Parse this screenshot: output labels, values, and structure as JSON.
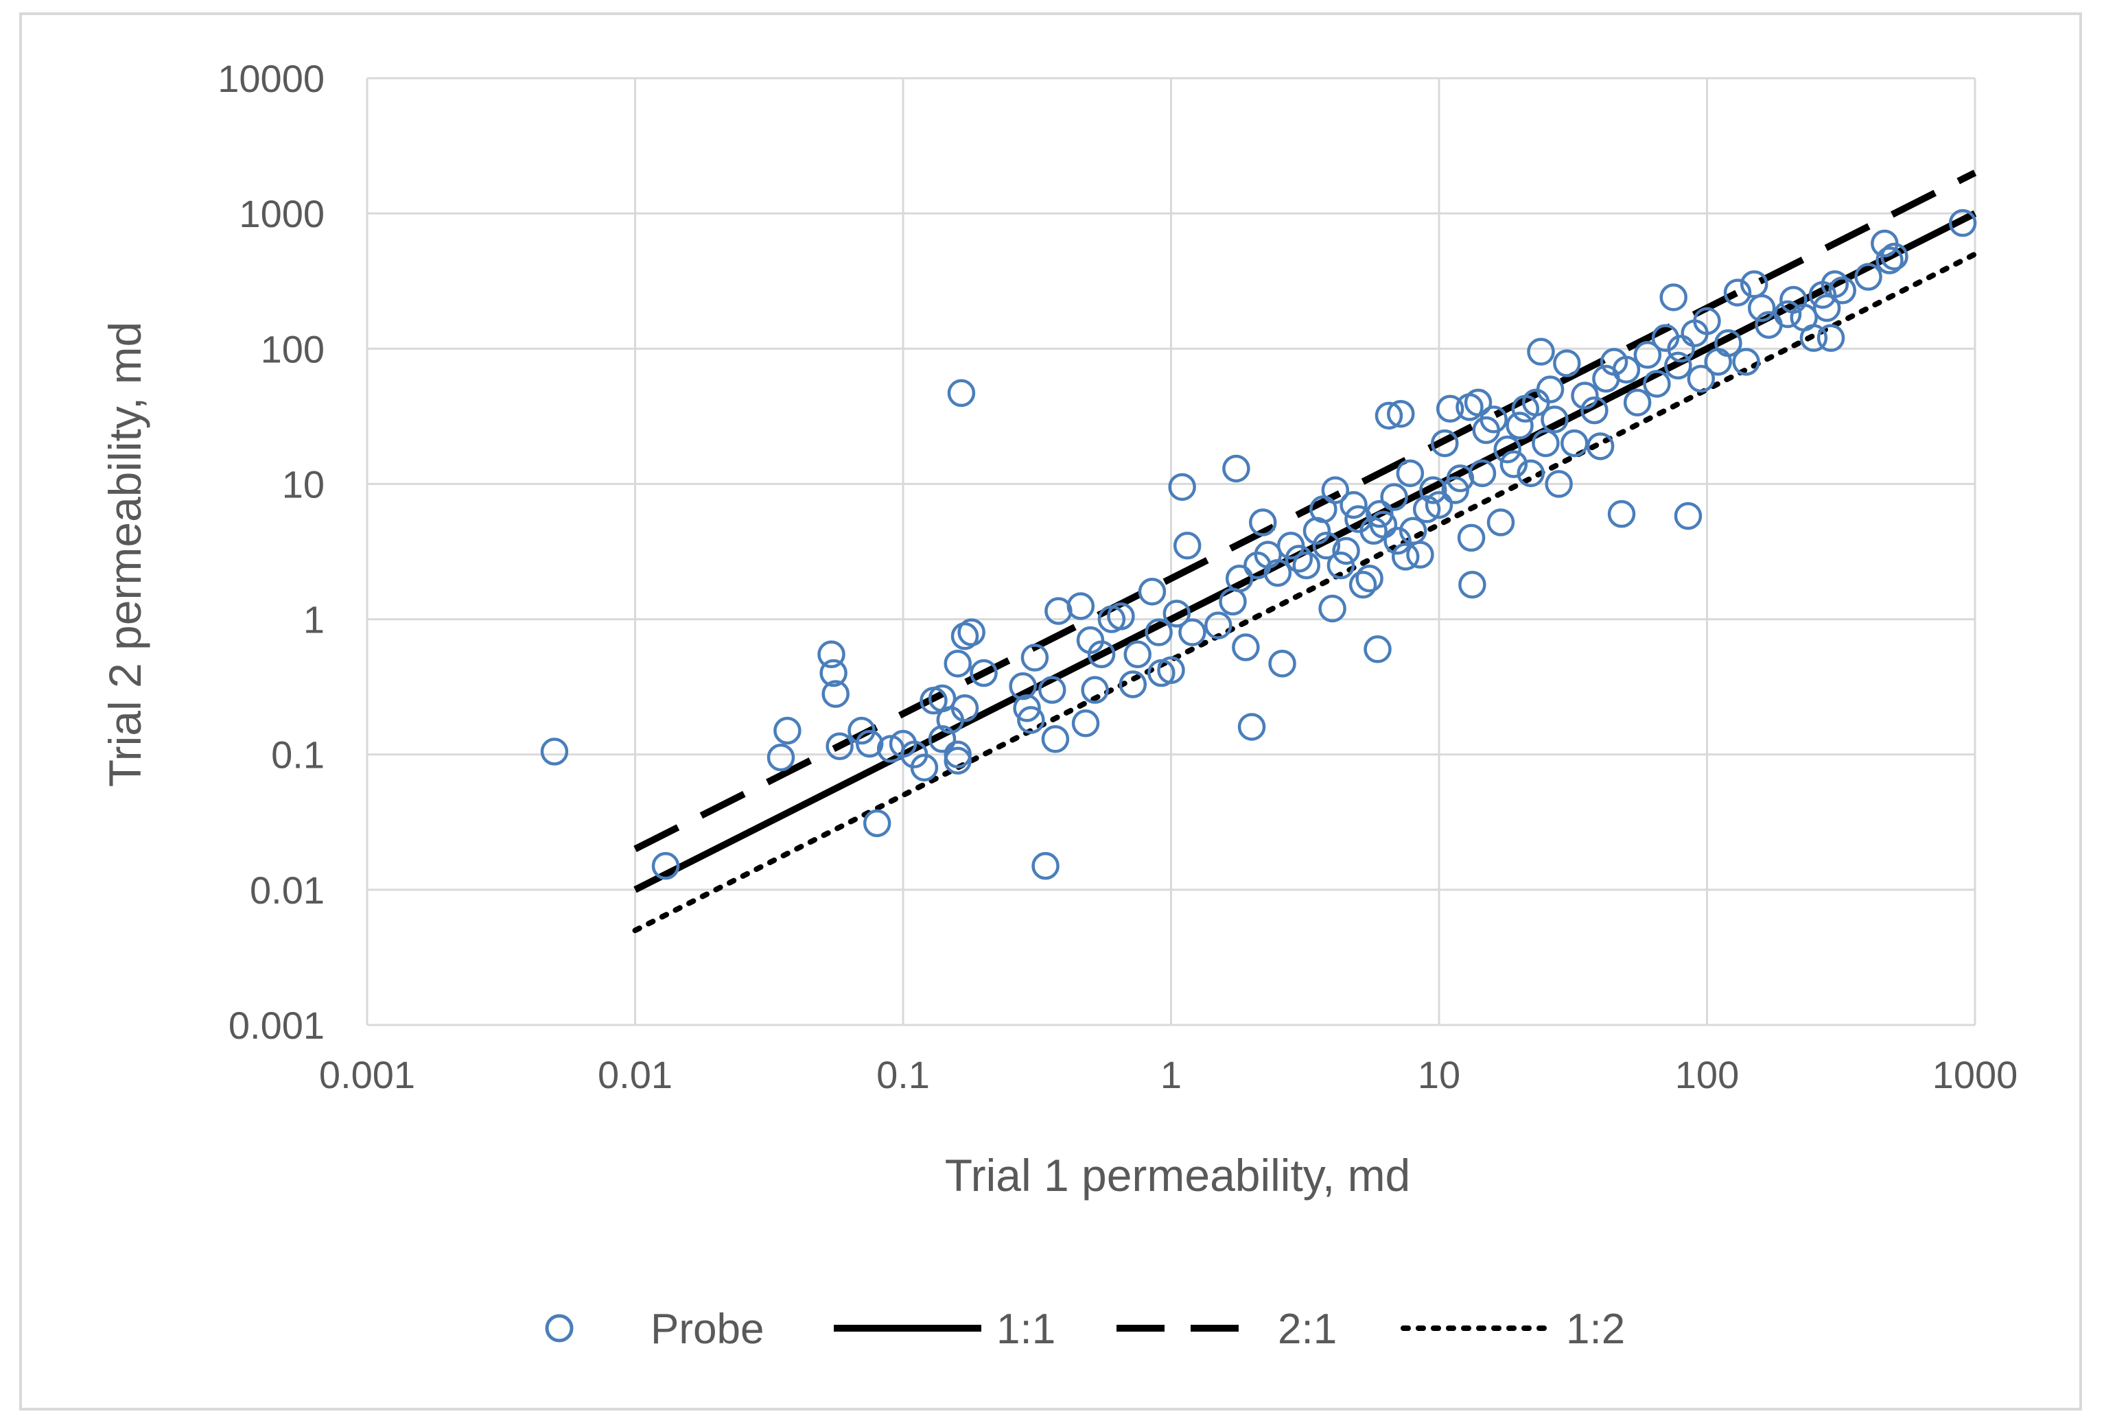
{
  "chart_data": {
    "type": "scatter",
    "title": "",
    "xlabel": "Trial 1 permeability, md",
    "ylabel": "Trial 2 permeability, md",
    "xscale": "log",
    "yscale": "log",
    "xlim": [
      0.001,
      1000
    ],
    "ylim": [
      0.001,
      10000
    ],
    "x_ticks": [
      0.001,
      0.01,
      0.1,
      1,
      10,
      100,
      1000
    ],
    "x_tick_labels": [
      "0.001",
      "0.01",
      "0.1",
      "1",
      "10",
      "100",
      "1000"
    ],
    "y_ticks": [
      0.001,
      0.01,
      0.1,
      1,
      10,
      100,
      1000,
      10000
    ],
    "y_tick_labels": [
      "0.001",
      "0.01",
      "0.1",
      "1",
      "10",
      "100",
      "1000",
      "10000"
    ],
    "grid": true,
    "legend_position": "bottom",
    "colors": {
      "probe": "#4a7ebb",
      "lines": "#000000",
      "grid": "#d9d9d9"
    },
    "series": [
      {
        "name": "Probe",
        "type": "scatter",
        "marker": "open-circle",
        "points": [
          [
            0.005,
            0.105
          ],
          [
            0.013,
            0.015
          ],
          [
            0.035,
            0.095
          ],
          [
            0.037,
            0.15
          ],
          [
            0.054,
            0.55
          ],
          [
            0.055,
            0.4
          ],
          [
            0.056,
            0.28
          ],
          [
            0.058,
            0.115
          ],
          [
            0.07,
            0.15
          ],
          [
            0.075,
            0.12
          ],
          [
            0.08,
            0.031
          ],
          [
            0.09,
            0.11
          ],
          [
            0.1,
            0.12
          ],
          [
            0.11,
            0.1
          ],
          [
            0.12,
            0.08
          ],
          [
            0.13,
            0.25
          ],
          [
            0.14,
            0.26
          ],
          [
            0.14,
            0.13
          ],
          [
            0.15,
            0.18
          ],
          [
            0.16,
            0.1
          ],
          [
            0.16,
            0.09
          ],
          [
            0.17,
            0.22
          ],
          [
            0.165,
            47
          ],
          [
            0.16,
            0.47
          ],
          [
            0.17,
            0.75
          ],
          [
            0.18,
            0.8
          ],
          [
            0.2,
            0.4
          ],
          [
            0.28,
            0.32
          ],
          [
            0.29,
            0.22
          ],
          [
            0.3,
            0.18
          ],
          [
            0.31,
            0.52
          ],
          [
            0.34,
            0.015
          ],
          [
            0.36,
            0.3
          ],
          [
            0.37,
            0.13
          ],
          [
            0.38,
            1.15
          ],
          [
            0.46,
            1.25
          ],
          [
            0.48,
            0.17
          ],
          [
            0.5,
            0.7
          ],
          [
            0.52,
            0.3
          ],
          [
            0.55,
            0.55
          ],
          [
            0.6,
            1.0
          ],
          [
            0.65,
            1.05
          ],
          [
            0.72,
            0.33
          ],
          [
            0.75,
            0.55
          ],
          [
            0.85,
            1.6
          ],
          [
            0.9,
            0.8
          ],
          [
            0.92,
            0.4
          ],
          [
            1.0,
            0.42
          ],
          [
            1.05,
            1.1
          ],
          [
            1.1,
            9.5
          ],
          [
            1.15,
            3.5
          ],
          [
            1.2,
            0.8
          ],
          [
            1.5,
            0.9
          ],
          [
            1.7,
            1.35
          ],
          [
            1.75,
            13
          ],
          [
            1.8,
            2.0
          ],
          [
            1.9,
            0.62
          ],
          [
            2.0,
            0.16
          ],
          [
            2.1,
            2.5
          ],
          [
            2.2,
            5.2
          ],
          [
            2.3,
            3.0
          ],
          [
            2.5,
            2.2
          ],
          [
            2.6,
            0.47
          ],
          [
            2.8,
            3.5
          ],
          [
            3.0,
            2.8
          ],
          [
            3.2,
            2.5
          ],
          [
            3.5,
            4.5
          ],
          [
            3.7,
            6.5
          ],
          [
            3.8,
            3.5
          ],
          [
            4.0,
            1.2
          ],
          [
            4.1,
            9.0
          ],
          [
            4.3,
            2.5
          ],
          [
            4.5,
            3.2
          ],
          [
            4.8,
            7.0
          ],
          [
            5.0,
            5.5
          ],
          [
            5.2,
            1.8
          ],
          [
            5.5,
            2.0
          ],
          [
            5.7,
            4.5
          ],
          [
            5.9,
            0.6
          ],
          [
            6.0,
            6.0
          ],
          [
            6.2,
            5.0
          ],
          [
            6.5,
            32
          ],
          [
            6.8,
            8.0
          ],
          [
            7.0,
            3.8
          ],
          [
            7.2,
            33
          ],
          [
            7.5,
            2.9
          ],
          [
            7.8,
            12
          ],
          [
            8.0,
            4.5
          ],
          [
            8.5,
            3.0
          ],
          [
            9.0,
            6.5
          ],
          [
            9.5,
            9.0
          ],
          [
            10,
            7.0
          ],
          [
            10.5,
            20
          ],
          [
            11,
            36
          ],
          [
            11.5,
            9.0
          ],
          [
            12,
            11
          ],
          [
            13,
            37
          ],
          [
            13.2,
            4.0
          ],
          [
            13.3,
            1.8
          ],
          [
            14,
            40
          ],
          [
            14.5,
            12
          ],
          [
            15,
            25
          ],
          [
            16,
            30
          ],
          [
            17,
            5.2
          ],
          [
            18,
            18
          ],
          [
            19,
            14
          ],
          [
            20,
            27
          ],
          [
            21,
            36
          ],
          [
            22,
            12
          ],
          [
            23,
            40
          ],
          [
            24,
            95
          ],
          [
            25,
            20
          ],
          [
            26,
            50
          ],
          [
            27,
            30
          ],
          [
            28,
            10
          ],
          [
            30,
            78
          ],
          [
            32,
            20
          ],
          [
            35,
            45
          ],
          [
            38,
            35
          ],
          [
            40,
            19
          ],
          [
            42,
            60
          ],
          [
            45,
            80
          ],
          [
            48,
            6.0
          ],
          [
            50,
            70
          ],
          [
            55,
            40
          ],
          [
            60,
            90
          ],
          [
            65,
            55
          ],
          [
            70,
            120
          ],
          [
            75,
            240
          ],
          [
            78,
            75
          ],
          [
            80,
            100
          ],
          [
            85,
            5.8
          ],
          [
            90,
            130
          ],
          [
            95,
            60
          ],
          [
            100,
            160
          ],
          [
            110,
            80
          ],
          [
            120,
            110
          ],
          [
            130,
            260
          ],
          [
            140,
            80
          ],
          [
            150,
            300
          ],
          [
            160,
            200
          ],
          [
            170,
            150
          ],
          [
            200,
            180
          ],
          [
            210,
            230
          ],
          [
            230,
            170
          ],
          [
            250,
            120
          ],
          [
            270,
            250
          ],
          [
            280,
            200
          ],
          [
            290,
            120
          ],
          [
            300,
            300
          ],
          [
            320,
            270
          ],
          [
            400,
            340
          ],
          [
            460,
            600
          ],
          [
            480,
            450
          ],
          [
            500,
            480
          ],
          [
            900,
            850
          ]
        ]
      },
      {
        "name": "1:1",
        "type": "line",
        "style": "solid",
        "x": [
          0.01,
          1000
        ],
        "y": [
          0.01,
          1000
        ]
      },
      {
        "name": "2:1",
        "type": "line",
        "style": "dashed",
        "x": [
          0.01,
          1000
        ],
        "y": [
          0.02,
          2000
        ]
      },
      {
        "name": "1:2",
        "type": "line",
        "style": "dotted",
        "x": [
          0.01,
          1000
        ],
        "y": [
          0.005,
          500
        ]
      }
    ]
  }
}
